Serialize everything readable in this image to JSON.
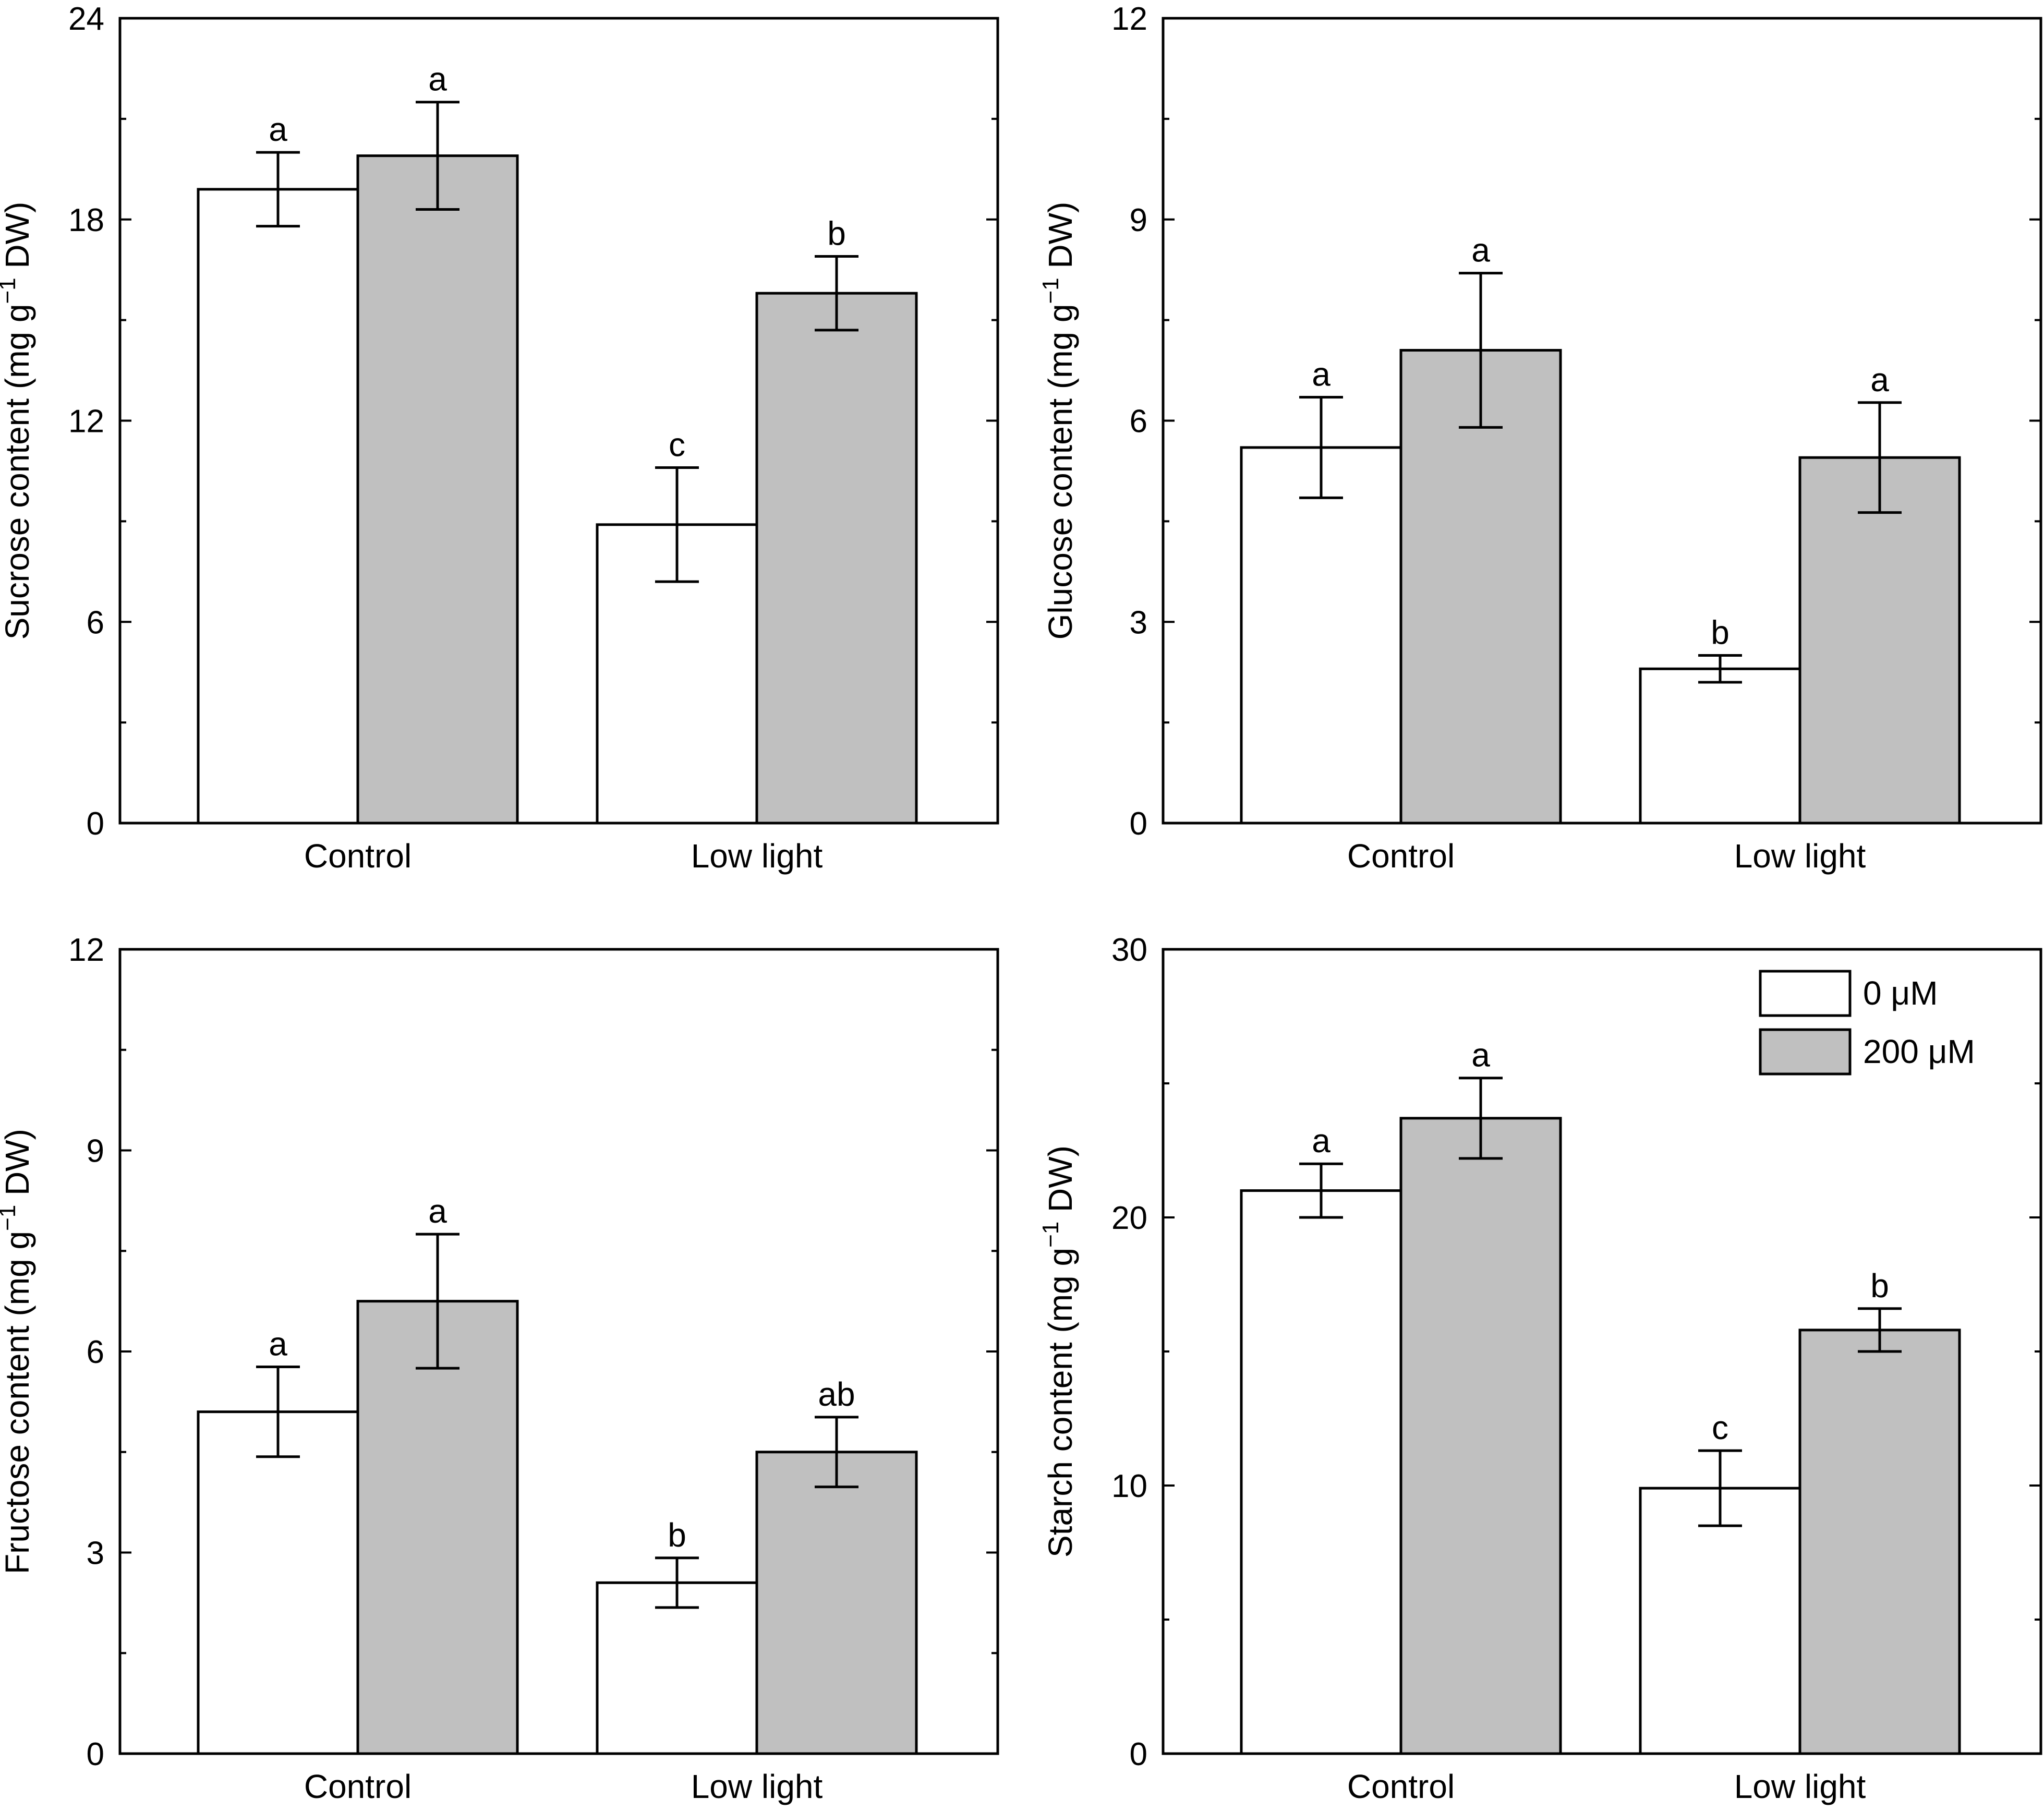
{
  "colors": {
    "series0": "#ffffff",
    "series1": "#c0c0c0",
    "axis": "#000000"
  },
  "legend": {
    "items": [
      {
        "label": "0 μM",
        "color": "#ffffff"
      },
      {
        "label": "200 μM",
        "color": "#c0c0c0"
      }
    ],
    "location": "top-right of starch panel"
  },
  "chart_data": [
    {
      "type": "bar",
      "panel": "sucrose",
      "ylabel": "Sucrose content (mg g",
      "ylabel_sup": "−1",
      "ylabel_tail": " DW)",
      "ylim": [
        0,
        24
      ],
      "yticks": [
        0,
        6,
        12,
        18,
        24
      ],
      "yticklabels": [
        "0",
        "6",
        "12",
        "18",
        "24"
      ],
      "yminor": [
        3,
        9,
        15,
        21
      ],
      "categories": [
        "Control",
        "Low light"
      ],
      "series": [
        {
          "name": "0 μM",
          "values": [
            18.9,
            8.9
          ],
          "errors": [
            1.1,
            1.7
          ],
          "letters": [
            "a",
            "c"
          ]
        },
        {
          "name": "200 μM",
          "values": [
            19.9,
            15.8
          ],
          "errors": [
            1.6,
            1.1
          ],
          "letters": [
            "a",
            "b"
          ]
        }
      ]
    },
    {
      "type": "bar",
      "panel": "glucose",
      "ylabel": "Glucose content (mg g",
      "ylabel_sup": "−1",
      "ylabel_tail": " DW)",
      "ylim": [
        0,
        12
      ],
      "yticks": [
        0,
        3,
        6,
        9,
        12
      ],
      "yticklabels": [
        "0",
        "3",
        "6",
        "9",
        "12"
      ],
      "yminor": [
        1.5,
        4.5,
        7.5,
        10.5
      ],
      "categories": [
        "Control",
        "Low light"
      ],
      "series": [
        {
          "name": "0 μM",
          "values": [
            5.6,
            2.3
          ],
          "errors": [
            0.75,
            0.2
          ],
          "letters": [
            "a",
            "b"
          ]
        },
        {
          "name": "200 μM",
          "values": [
            7.05,
            5.45
          ],
          "errors": [
            1.15,
            0.82
          ],
          "letters": [
            "a",
            "a"
          ]
        }
      ]
    },
    {
      "type": "bar",
      "panel": "fructose",
      "ylabel": "Fructose content (mg g",
      "ylabel_sup": "−1",
      "ylabel_tail": " DW)",
      "ylim": [
        0,
        12
      ],
      "yticks": [
        0,
        3,
        6,
        9,
        12
      ],
      "yticklabels": [
        "0",
        "3",
        "6",
        "9",
        "12"
      ],
      "yminor": [
        1.5,
        4.5,
        7.5,
        10.5
      ],
      "categories": [
        "Control",
        "Low light"
      ],
      "series": [
        {
          "name": "0 μM",
          "values": [
            5.1,
            2.55
          ],
          "errors": [
            0.67,
            0.37
          ],
          "letters": [
            "a",
            "b"
          ]
        },
        {
          "name": "200 μM",
          "values": [
            6.75,
            4.5
          ],
          "errors": [
            1.0,
            0.52
          ],
          "letters": [
            "a",
            "ab"
          ]
        }
      ]
    },
    {
      "type": "bar",
      "panel": "starch",
      "ylabel": "Starch content (mg g",
      "ylabel_sup": "−1",
      "ylabel_tail": " DW)",
      "ylim": [
        0,
        30
      ],
      "yticks": [
        0,
        10,
        20,
        30
      ],
      "yticklabels": [
        "0",
        "10",
        "20",
        "30"
      ],
      "yminor": [
        5,
        15,
        25
      ],
      "categories": [
        "Control",
        "Low light"
      ],
      "series": [
        {
          "name": "0 μM",
          "values": [
            21.0,
            9.9
          ],
          "errors": [
            1.0,
            1.4
          ],
          "letters": [
            "a",
            "c"
          ]
        },
        {
          "name": "200 μM",
          "values": [
            23.7,
            15.8
          ],
          "errors": [
            1.5,
            0.8
          ],
          "letters": [
            "a",
            "b"
          ]
        }
      ]
    }
  ]
}
